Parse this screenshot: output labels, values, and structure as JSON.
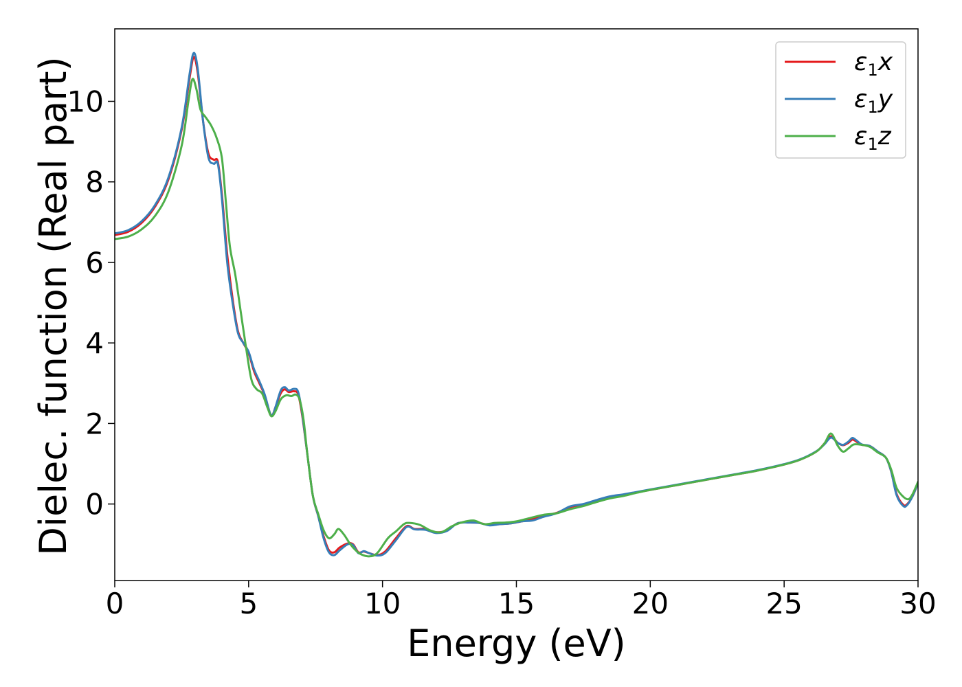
{
  "chart_data": {
    "type": "line",
    "title": "",
    "xlabel": "Energy (eV)",
    "ylabel": "Dielec. function (Real part)",
    "xlim": [
      0,
      30
    ],
    "ylim": [
      -1.9,
      11.8
    ],
    "xticks": [
      0,
      5,
      10,
      15,
      20,
      25,
      30
    ],
    "xtick_labels": [
      "0",
      "5",
      "10",
      "15",
      "20",
      "25",
      "30"
    ],
    "yticks": [
      0,
      2,
      4,
      6,
      8,
      10
    ],
    "ytick_labels": [
      "0",
      "2",
      "4",
      "6",
      "8",
      "10"
    ],
    "grid": false,
    "legend_position": "top-right",
    "series": [
      {
        "name": "ε1x",
        "name_base": "ε",
        "name_sub": "1",
        "name_suffix": "x",
        "color": "#e41a1c",
        "points": [
          [
            0,
            6.68
          ],
          [
            0.5,
            6.76
          ],
          [
            1.0,
            6.98
          ],
          [
            1.5,
            7.38
          ],
          [
            2.0,
            8.05
          ],
          [
            2.5,
            9.3
          ],
          [
            2.8,
            10.6
          ],
          [
            2.95,
            11.1
          ],
          [
            3.1,
            10.7
          ],
          [
            3.3,
            9.5
          ],
          [
            3.5,
            8.7
          ],
          [
            3.7,
            8.55
          ],
          [
            3.85,
            8.5
          ],
          [
            4.0,
            7.7
          ],
          [
            4.2,
            6.2
          ],
          [
            4.4,
            5.1
          ],
          [
            4.6,
            4.3
          ],
          [
            4.8,
            4.0
          ],
          [
            5.0,
            3.75
          ],
          [
            5.2,
            3.3
          ],
          [
            5.4,
            3.0
          ],
          [
            5.6,
            2.7
          ],
          [
            5.8,
            2.25
          ],
          [
            5.9,
            2.22
          ],
          [
            6.0,
            2.4
          ],
          [
            6.2,
            2.75
          ],
          [
            6.35,
            2.85
          ],
          [
            6.5,
            2.78
          ],
          [
            6.7,
            2.8
          ],
          [
            6.85,
            2.72
          ],
          [
            7.0,
            2.2
          ],
          [
            7.2,
            1.2
          ],
          [
            7.4,
            0.2
          ],
          [
            7.6,
            -0.3
          ],
          [
            7.8,
            -0.8
          ],
          [
            8.0,
            -1.15
          ],
          [
            8.2,
            -1.2
          ],
          [
            8.4,
            -1.08
          ],
          [
            8.7,
            -0.98
          ],
          [
            8.9,
            -1.0
          ],
          [
            9.1,
            -1.2
          ],
          [
            9.3,
            -1.18
          ],
          [
            9.5,
            -1.22
          ],
          [
            9.8,
            -1.27
          ],
          [
            10.1,
            -1.18
          ],
          [
            10.5,
            -0.85
          ],
          [
            10.9,
            -0.55
          ],
          [
            11.2,
            -0.62
          ],
          [
            11.6,
            -0.62
          ],
          [
            12.0,
            -0.7
          ],
          [
            12.4,
            -0.66
          ],
          [
            12.8,
            -0.48
          ],
          [
            13.2,
            -0.46
          ],
          [
            13.6,
            -0.47
          ],
          [
            14.0,
            -0.52
          ],
          [
            14.4,
            -0.5
          ],
          [
            14.8,
            -0.48
          ],
          [
            15.2,
            -0.43
          ],
          [
            15.6,
            -0.38
          ],
          [
            16.0,
            -0.3
          ],
          [
            16.5,
            -0.22
          ],
          [
            17.0,
            -0.08
          ],
          [
            17.5,
            -0.01
          ],
          [
            18.0,
            0.08
          ],
          [
            18.5,
            0.17
          ],
          [
            19.0,
            0.23
          ],
          [
            19.5,
            0.29
          ],
          [
            20.0,
            0.35
          ],
          [
            21.0,
            0.47
          ],
          [
            22.0,
            0.59
          ],
          [
            23.0,
            0.71
          ],
          [
            24.0,
            0.83
          ],
          [
            25.0,
            0.98
          ],
          [
            25.6,
            1.1
          ],
          [
            26.2,
            1.3
          ],
          [
            26.5,
            1.5
          ],
          [
            26.75,
            1.68
          ],
          [
            27.0,
            1.52
          ],
          [
            27.2,
            1.46
          ],
          [
            27.4,
            1.52
          ],
          [
            27.55,
            1.6
          ],
          [
            27.7,
            1.55
          ],
          [
            27.9,
            1.47
          ],
          [
            28.2,
            1.44
          ],
          [
            28.5,
            1.3
          ],
          [
            28.8,
            1.15
          ],
          [
            29.0,
            0.8
          ],
          [
            29.2,
            0.25
          ],
          [
            29.45,
            -0.02
          ],
          [
            29.6,
            0.0
          ],
          [
            29.8,
            0.2
          ],
          [
            30.0,
            0.52
          ]
        ]
      },
      {
        "name": "ε1y",
        "name_base": "ε",
        "name_sub": "1",
        "name_suffix": "y",
        "color": "#377eb8",
        "points": [
          [
            0,
            6.72
          ],
          [
            0.5,
            6.8
          ],
          [
            1.0,
            7.02
          ],
          [
            1.5,
            7.42
          ],
          [
            2.0,
            8.1
          ],
          [
            2.5,
            9.35
          ],
          [
            2.8,
            10.7
          ],
          [
            2.95,
            11.2
          ],
          [
            3.1,
            10.8
          ],
          [
            3.3,
            9.5
          ],
          [
            3.5,
            8.6
          ],
          [
            3.7,
            8.45
          ],
          [
            3.85,
            8.45
          ],
          [
            4.0,
            7.6
          ],
          [
            4.2,
            6.0
          ],
          [
            4.4,
            5.0
          ],
          [
            4.6,
            4.25
          ],
          [
            4.8,
            4.0
          ],
          [
            5.0,
            3.78
          ],
          [
            5.2,
            3.35
          ],
          [
            5.4,
            3.05
          ],
          [
            5.6,
            2.72
          ],
          [
            5.8,
            2.25
          ],
          [
            5.9,
            2.22
          ],
          [
            6.0,
            2.4
          ],
          [
            6.2,
            2.82
          ],
          [
            6.35,
            2.9
          ],
          [
            6.5,
            2.82
          ],
          [
            6.7,
            2.86
          ],
          [
            6.85,
            2.78
          ],
          [
            7.0,
            2.25
          ],
          [
            7.2,
            1.2
          ],
          [
            7.4,
            0.2
          ],
          [
            7.6,
            -0.3
          ],
          [
            7.8,
            -0.85
          ],
          [
            8.0,
            -1.2
          ],
          [
            8.2,
            -1.27
          ],
          [
            8.4,
            -1.15
          ],
          [
            8.7,
            -1.0
          ],
          [
            8.9,
            -1.02
          ],
          [
            9.1,
            -1.22
          ],
          [
            9.3,
            -1.17
          ],
          [
            9.5,
            -1.22
          ],
          [
            9.8,
            -1.28
          ],
          [
            10.1,
            -1.22
          ],
          [
            10.5,
            -0.9
          ],
          [
            10.9,
            -0.57
          ],
          [
            11.2,
            -0.63
          ],
          [
            11.6,
            -0.64
          ],
          [
            12.0,
            -0.72
          ],
          [
            12.4,
            -0.67
          ],
          [
            12.8,
            -0.48
          ],
          [
            13.2,
            -0.46
          ],
          [
            13.6,
            -0.47
          ],
          [
            14.0,
            -0.53
          ],
          [
            14.4,
            -0.5
          ],
          [
            14.8,
            -0.48
          ],
          [
            15.2,
            -0.43
          ],
          [
            15.6,
            -0.41
          ],
          [
            16.0,
            -0.32
          ],
          [
            16.5,
            -0.23
          ],
          [
            17.0,
            -0.06
          ],
          [
            17.5,
            0.0
          ],
          [
            18.0,
            0.1
          ],
          [
            18.5,
            0.19
          ],
          [
            19.0,
            0.24
          ],
          [
            19.5,
            0.3
          ],
          [
            20.0,
            0.36
          ],
          [
            21.0,
            0.48
          ],
          [
            22.0,
            0.6
          ],
          [
            23.0,
            0.72
          ],
          [
            24.0,
            0.84
          ],
          [
            25.0,
            0.99
          ],
          [
            25.6,
            1.11
          ],
          [
            26.2,
            1.31
          ],
          [
            26.5,
            1.48
          ],
          [
            26.75,
            1.65
          ],
          [
            27.0,
            1.52
          ],
          [
            27.2,
            1.47
          ],
          [
            27.4,
            1.55
          ],
          [
            27.55,
            1.64
          ],
          [
            27.7,
            1.58
          ],
          [
            27.9,
            1.48
          ],
          [
            28.2,
            1.44
          ],
          [
            28.5,
            1.3
          ],
          [
            28.8,
            1.15
          ],
          [
            29.0,
            0.8
          ],
          [
            29.2,
            0.22
          ],
          [
            29.45,
            -0.05
          ],
          [
            29.6,
            -0.02
          ],
          [
            29.8,
            0.2
          ],
          [
            30.0,
            0.52
          ]
        ]
      },
      {
        "name": "ε1z",
        "name_base": "ε",
        "name_sub": "1",
        "name_suffix": "z",
        "color": "#4daf4a",
        "points": [
          [
            0,
            6.58
          ],
          [
            0.5,
            6.64
          ],
          [
            1.0,
            6.82
          ],
          [
            1.5,
            7.15
          ],
          [
            2.0,
            7.75
          ],
          [
            2.5,
            8.9
          ],
          [
            2.75,
            10.0
          ],
          [
            2.9,
            10.55
          ],
          [
            3.05,
            10.3
          ],
          [
            3.2,
            9.8
          ],
          [
            3.4,
            9.6
          ],
          [
            3.6,
            9.4
          ],
          [
            3.8,
            9.1
          ],
          [
            4.0,
            8.6
          ],
          [
            4.15,
            7.5
          ],
          [
            4.3,
            6.4
          ],
          [
            4.5,
            5.7
          ],
          [
            4.7,
            4.8
          ],
          [
            4.9,
            3.9
          ],
          [
            5.1,
            3.1
          ],
          [
            5.3,
            2.85
          ],
          [
            5.5,
            2.75
          ],
          [
            5.7,
            2.4
          ],
          [
            5.85,
            2.18
          ],
          [
            6.0,
            2.3
          ],
          [
            6.2,
            2.6
          ],
          [
            6.4,
            2.7
          ],
          [
            6.6,
            2.68
          ],
          [
            6.75,
            2.72
          ],
          [
            6.9,
            2.6
          ],
          [
            7.05,
            2.1
          ],
          [
            7.2,
            1.2
          ],
          [
            7.4,
            0.2
          ],
          [
            7.6,
            -0.25
          ],
          [
            7.8,
            -0.65
          ],
          [
            8.0,
            -0.85
          ],
          [
            8.2,
            -0.75
          ],
          [
            8.35,
            -0.62
          ],
          [
            8.55,
            -0.75
          ],
          [
            8.8,
            -1.0
          ],
          [
            9.0,
            -1.15
          ],
          [
            9.2,
            -1.25
          ],
          [
            9.5,
            -1.3
          ],
          [
            9.8,
            -1.22
          ],
          [
            10.2,
            -0.85
          ],
          [
            10.5,
            -0.68
          ],
          [
            10.8,
            -0.5
          ],
          [
            11.0,
            -0.47
          ],
          [
            11.4,
            -0.52
          ],
          [
            11.8,
            -0.66
          ],
          [
            12.2,
            -0.7
          ],
          [
            12.6,
            -0.55
          ],
          [
            13.0,
            -0.45
          ],
          [
            13.4,
            -0.41
          ],
          [
            13.8,
            -0.5
          ],
          [
            14.2,
            -0.47
          ],
          [
            14.6,
            -0.46
          ],
          [
            15.0,
            -0.43
          ],
          [
            15.5,
            -0.35
          ],
          [
            16.0,
            -0.27
          ],
          [
            16.5,
            -0.23
          ],
          [
            17.0,
            -0.13
          ],
          [
            17.5,
            -0.05
          ],
          [
            18.0,
            0.05
          ],
          [
            18.5,
            0.14
          ],
          [
            19.0,
            0.2
          ],
          [
            19.5,
            0.28
          ],
          [
            20.0,
            0.35
          ],
          [
            21.0,
            0.47
          ],
          [
            22.0,
            0.59
          ],
          [
            23.0,
            0.71
          ],
          [
            24.0,
            0.83
          ],
          [
            25.0,
            0.98
          ],
          [
            25.6,
            1.1
          ],
          [
            26.2,
            1.3
          ],
          [
            26.5,
            1.5
          ],
          [
            26.75,
            1.75
          ],
          [
            27.0,
            1.45
          ],
          [
            27.2,
            1.3
          ],
          [
            27.4,
            1.38
          ],
          [
            27.6,
            1.48
          ],
          [
            27.9,
            1.47
          ],
          [
            28.2,
            1.42
          ],
          [
            28.5,
            1.28
          ],
          [
            28.8,
            1.15
          ],
          [
            29.0,
            0.85
          ],
          [
            29.2,
            0.4
          ],
          [
            29.45,
            0.18
          ],
          [
            29.65,
            0.12
          ],
          [
            29.8,
            0.25
          ],
          [
            30.0,
            0.55
          ]
        ]
      }
    ]
  }
}
